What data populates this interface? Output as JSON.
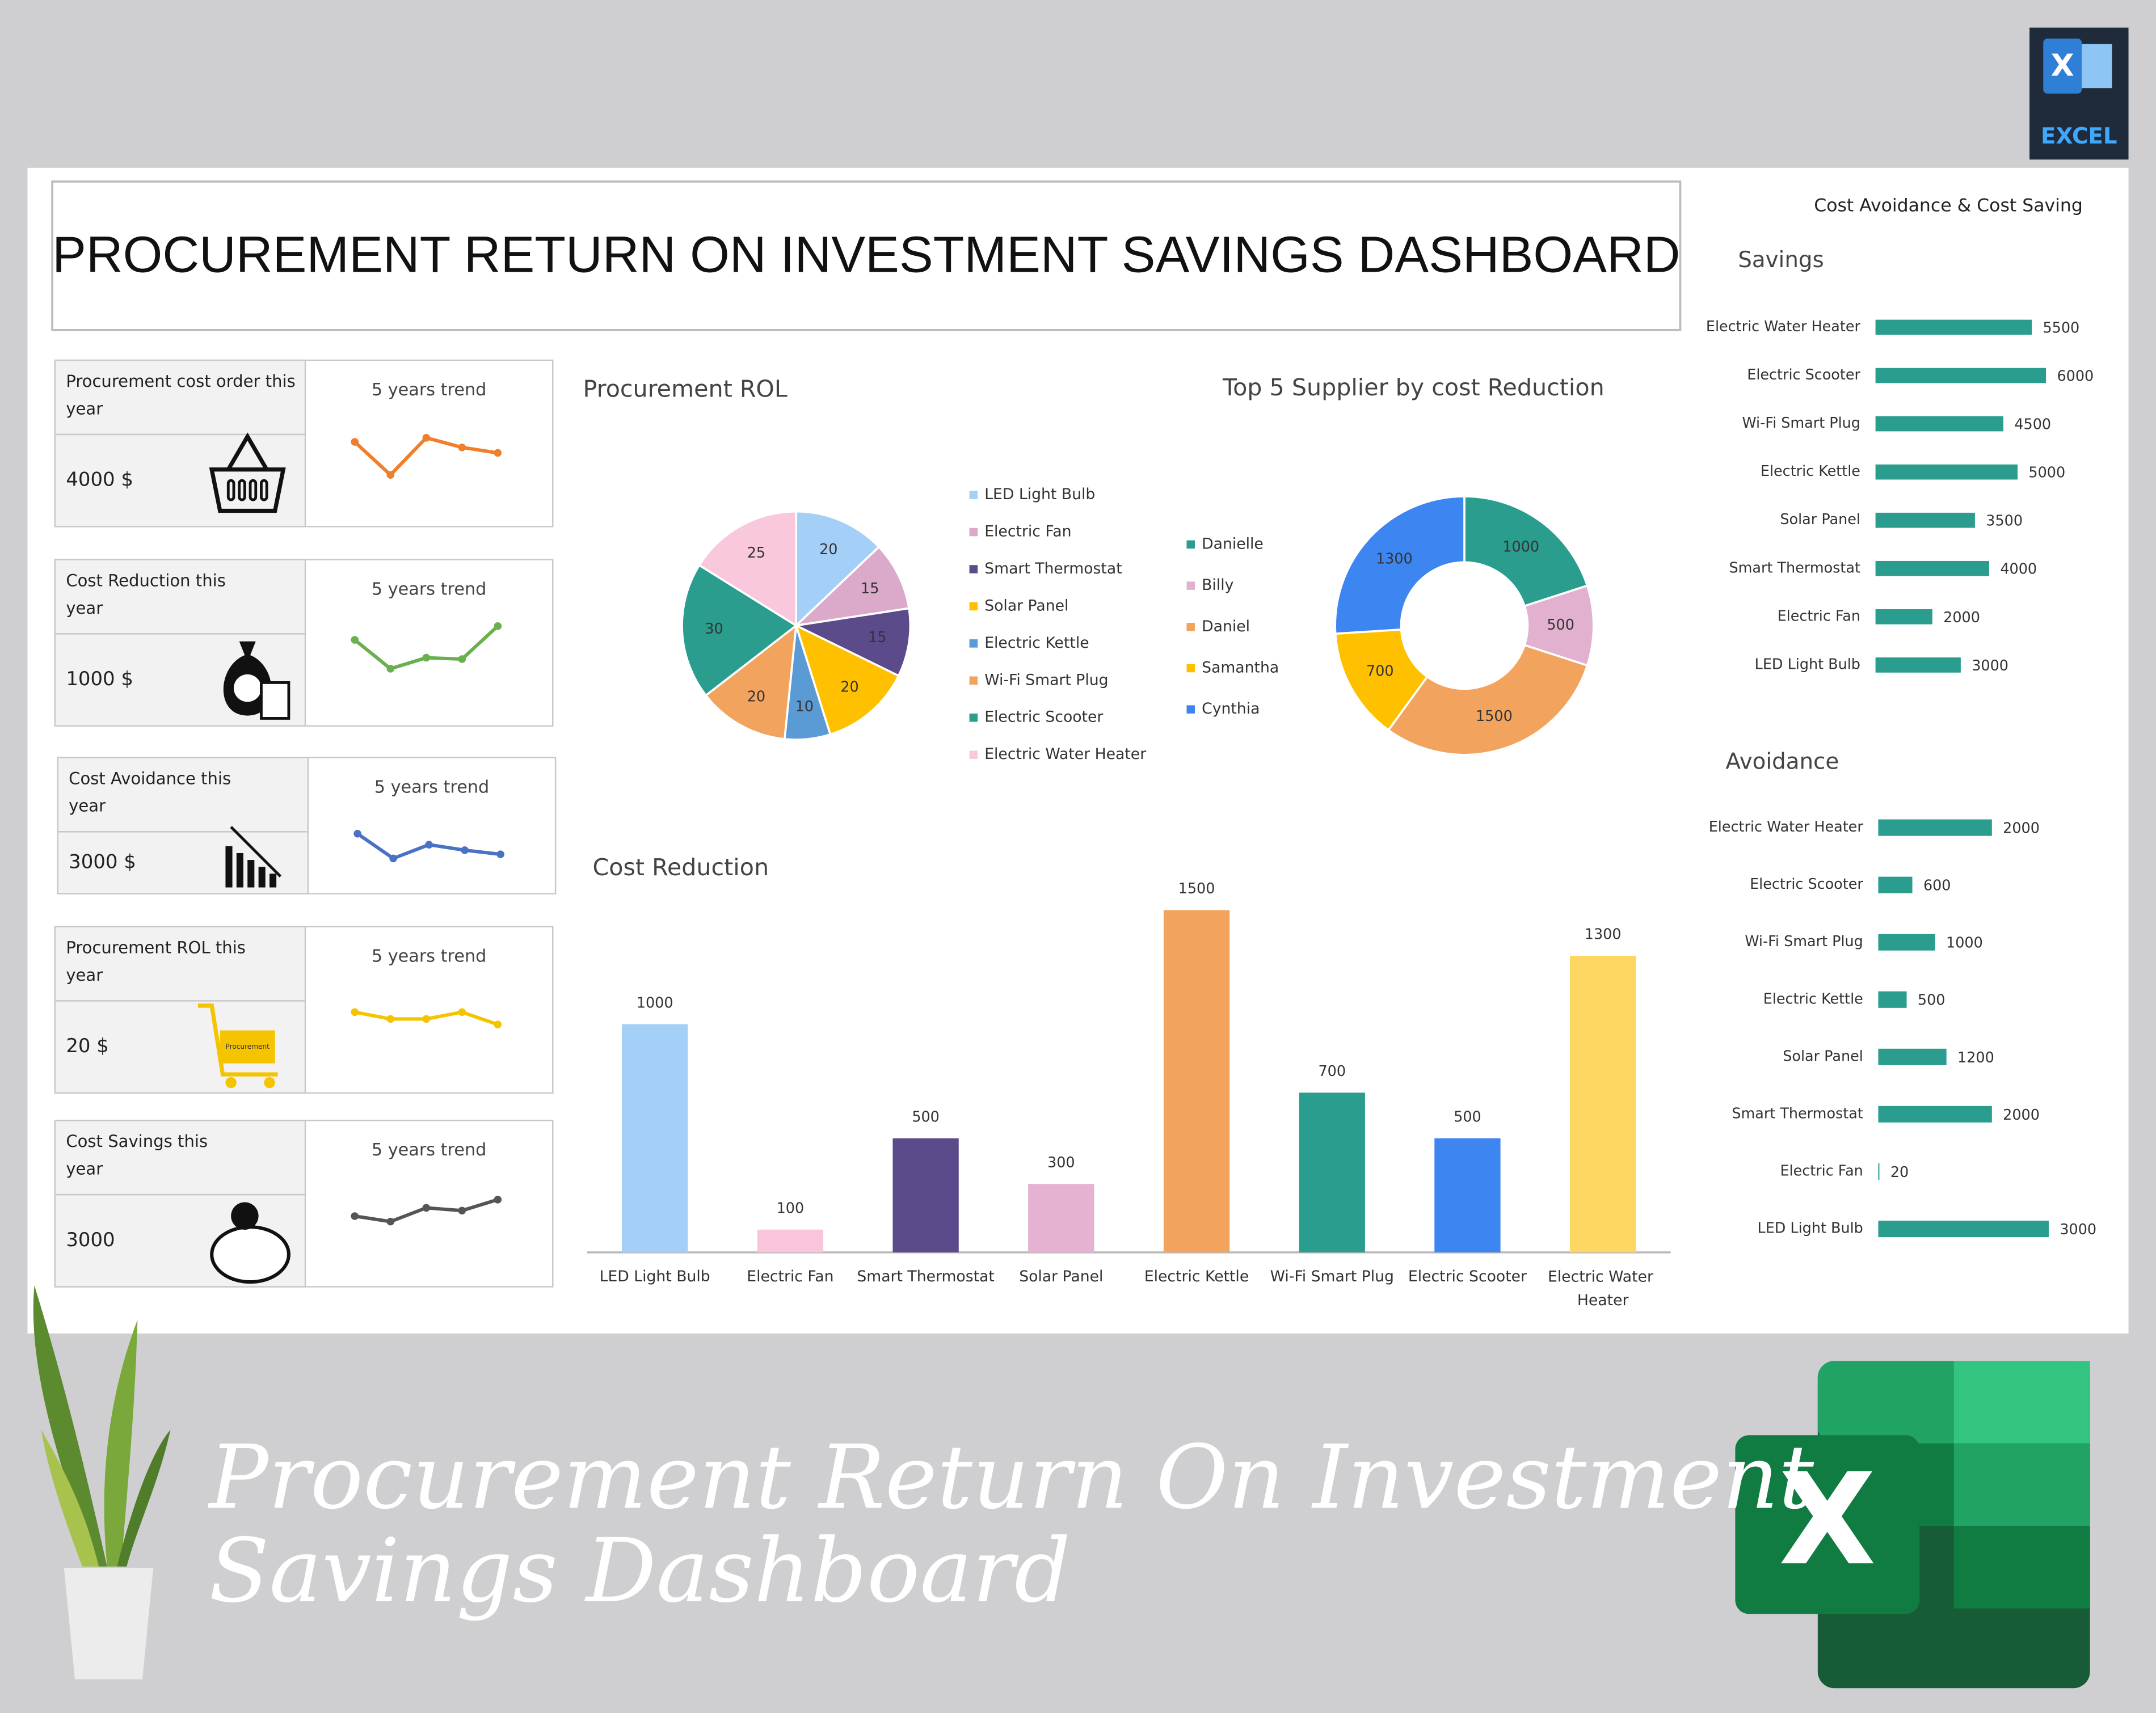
{
  "header": {
    "title": "PROCUREMENT RETURN ON INVESTMENT SAVINGS DASHBOARD"
  },
  "kpis": [
    {
      "label": "Procurement cost order this year",
      "value": "4000 $",
      "trend_title": "5 years trend",
      "trend": [
        31,
        7,
        34,
        27,
        23
      ],
      "color": "#f07e2b"
    },
    {
      "label": "Cost Reduction this year",
      "value": "1000 $",
      "trend_title": "5 years trend",
      "trend": [
        23,
        2,
        10,
        9,
        33
      ],
      "color": "#6ab04c"
    },
    {
      "label": "Cost Avoidance this year",
      "value": "3000 $",
      "trend_title": "5 years trend",
      "trend": [
        29,
        11,
        21,
        17,
        14
      ],
      "color": "#4a72c4"
    },
    {
      "label": "Procurement ROL this year",
      "value": "20 $",
      "trend_title": "5 years trend",
      "trend": [
        15,
        10,
        10,
        15,
        6
      ],
      "color": "#f5c400",
      "icon_text": "Procurement"
    },
    {
      "label": "Cost Savings this year",
      "value": "3000",
      "trend_title": "5 years trend",
      "trend": [
        8,
        4,
        14,
        12,
        20
      ],
      "color": "#555555"
    }
  ],
  "side_title": "Cost Avoidance & Cost Saving",
  "chart_data": [
    {
      "type": "pie",
      "title": "Procurement ROL",
      "categories": [
        "LED Light Bulb",
        "Electric Fan",
        "Smart Thermostat",
        "Solar Panel",
        "Electric Kettle",
        "Wi-Fi Smart Plug",
        "Electric Scooter",
        "Electric Water Heater"
      ],
      "values": [
        20,
        15,
        15,
        20,
        10,
        20,
        30,
        25
      ],
      "colors": [
        "#a4cff7",
        "#dba9c9",
        "#5c4b8b",
        "#ffc000",
        "#5b9bd5",
        "#f2a35e",
        "#2a9d8f",
        "#f9c8dc"
      ]
    },
    {
      "type": "donut",
      "title": "Top 5 Supplier by cost Reduction",
      "categories": [
        "Danielle",
        "Billy",
        "Daniel",
        "Samantha",
        "Cynthia"
      ],
      "values": [
        1000,
        500,
        1500,
        700,
        1300
      ],
      "colors": [
        "#2a9d8f",
        "#e3b1d0",
        "#f2a35e",
        "#ffc000",
        "#3d85f0"
      ]
    },
    {
      "type": "bar",
      "title": "Cost Reduction",
      "categories": [
        "LED Light Bulb",
        "Electric Fan",
        "Smart Thermostat",
        "Solar Panel",
        "Electric Kettle",
        "Wi-Fi Smart Plug",
        "Electric Scooter",
        "Electric Water Heater"
      ],
      "values": [
        1000,
        100,
        500,
        300,
        1500,
        700,
        500,
        1300
      ],
      "colors": [
        "#a4cff7",
        "#f9c4dc",
        "#5c4b8b",
        "#e5b3d1",
        "#f2a35e",
        "#2a9d8f",
        "#3d85f0",
        "#fdd663"
      ]
    },
    {
      "type": "hbar",
      "title": "Savings",
      "categories": [
        "Electric Water Heater",
        "Electric Scooter",
        "Wi-Fi Smart Plug",
        "Electric Kettle",
        "Solar Panel",
        "Smart Thermostat",
        "Electric Fan",
        "LED Light Bulb"
      ],
      "values": [
        5500,
        6000,
        4500,
        5000,
        3500,
        4000,
        2000,
        3000
      ],
      "color": "#2a9d8f"
    },
    {
      "type": "hbar",
      "title": "Avoidance",
      "categories": [
        "Electric Water Heater",
        "Electric Scooter",
        "Wi-Fi Smart Plug",
        "Electric Kettle",
        "Solar Panel",
        "Smart Thermostat",
        "Electric Fan",
        "LED Light Bulb"
      ],
      "values": [
        2000,
        600,
        1000,
        500,
        1200,
        2000,
        20,
        3000
      ],
      "color": "#2a9d8f"
    }
  ],
  "banner": {
    "title_lines": [
      "Procurement Return On Investment",
      "Savings Dashboard"
    ]
  },
  "logos": {
    "badge_letter": "X",
    "badge_label": "EXCEL",
    "big_letter": "X"
  }
}
